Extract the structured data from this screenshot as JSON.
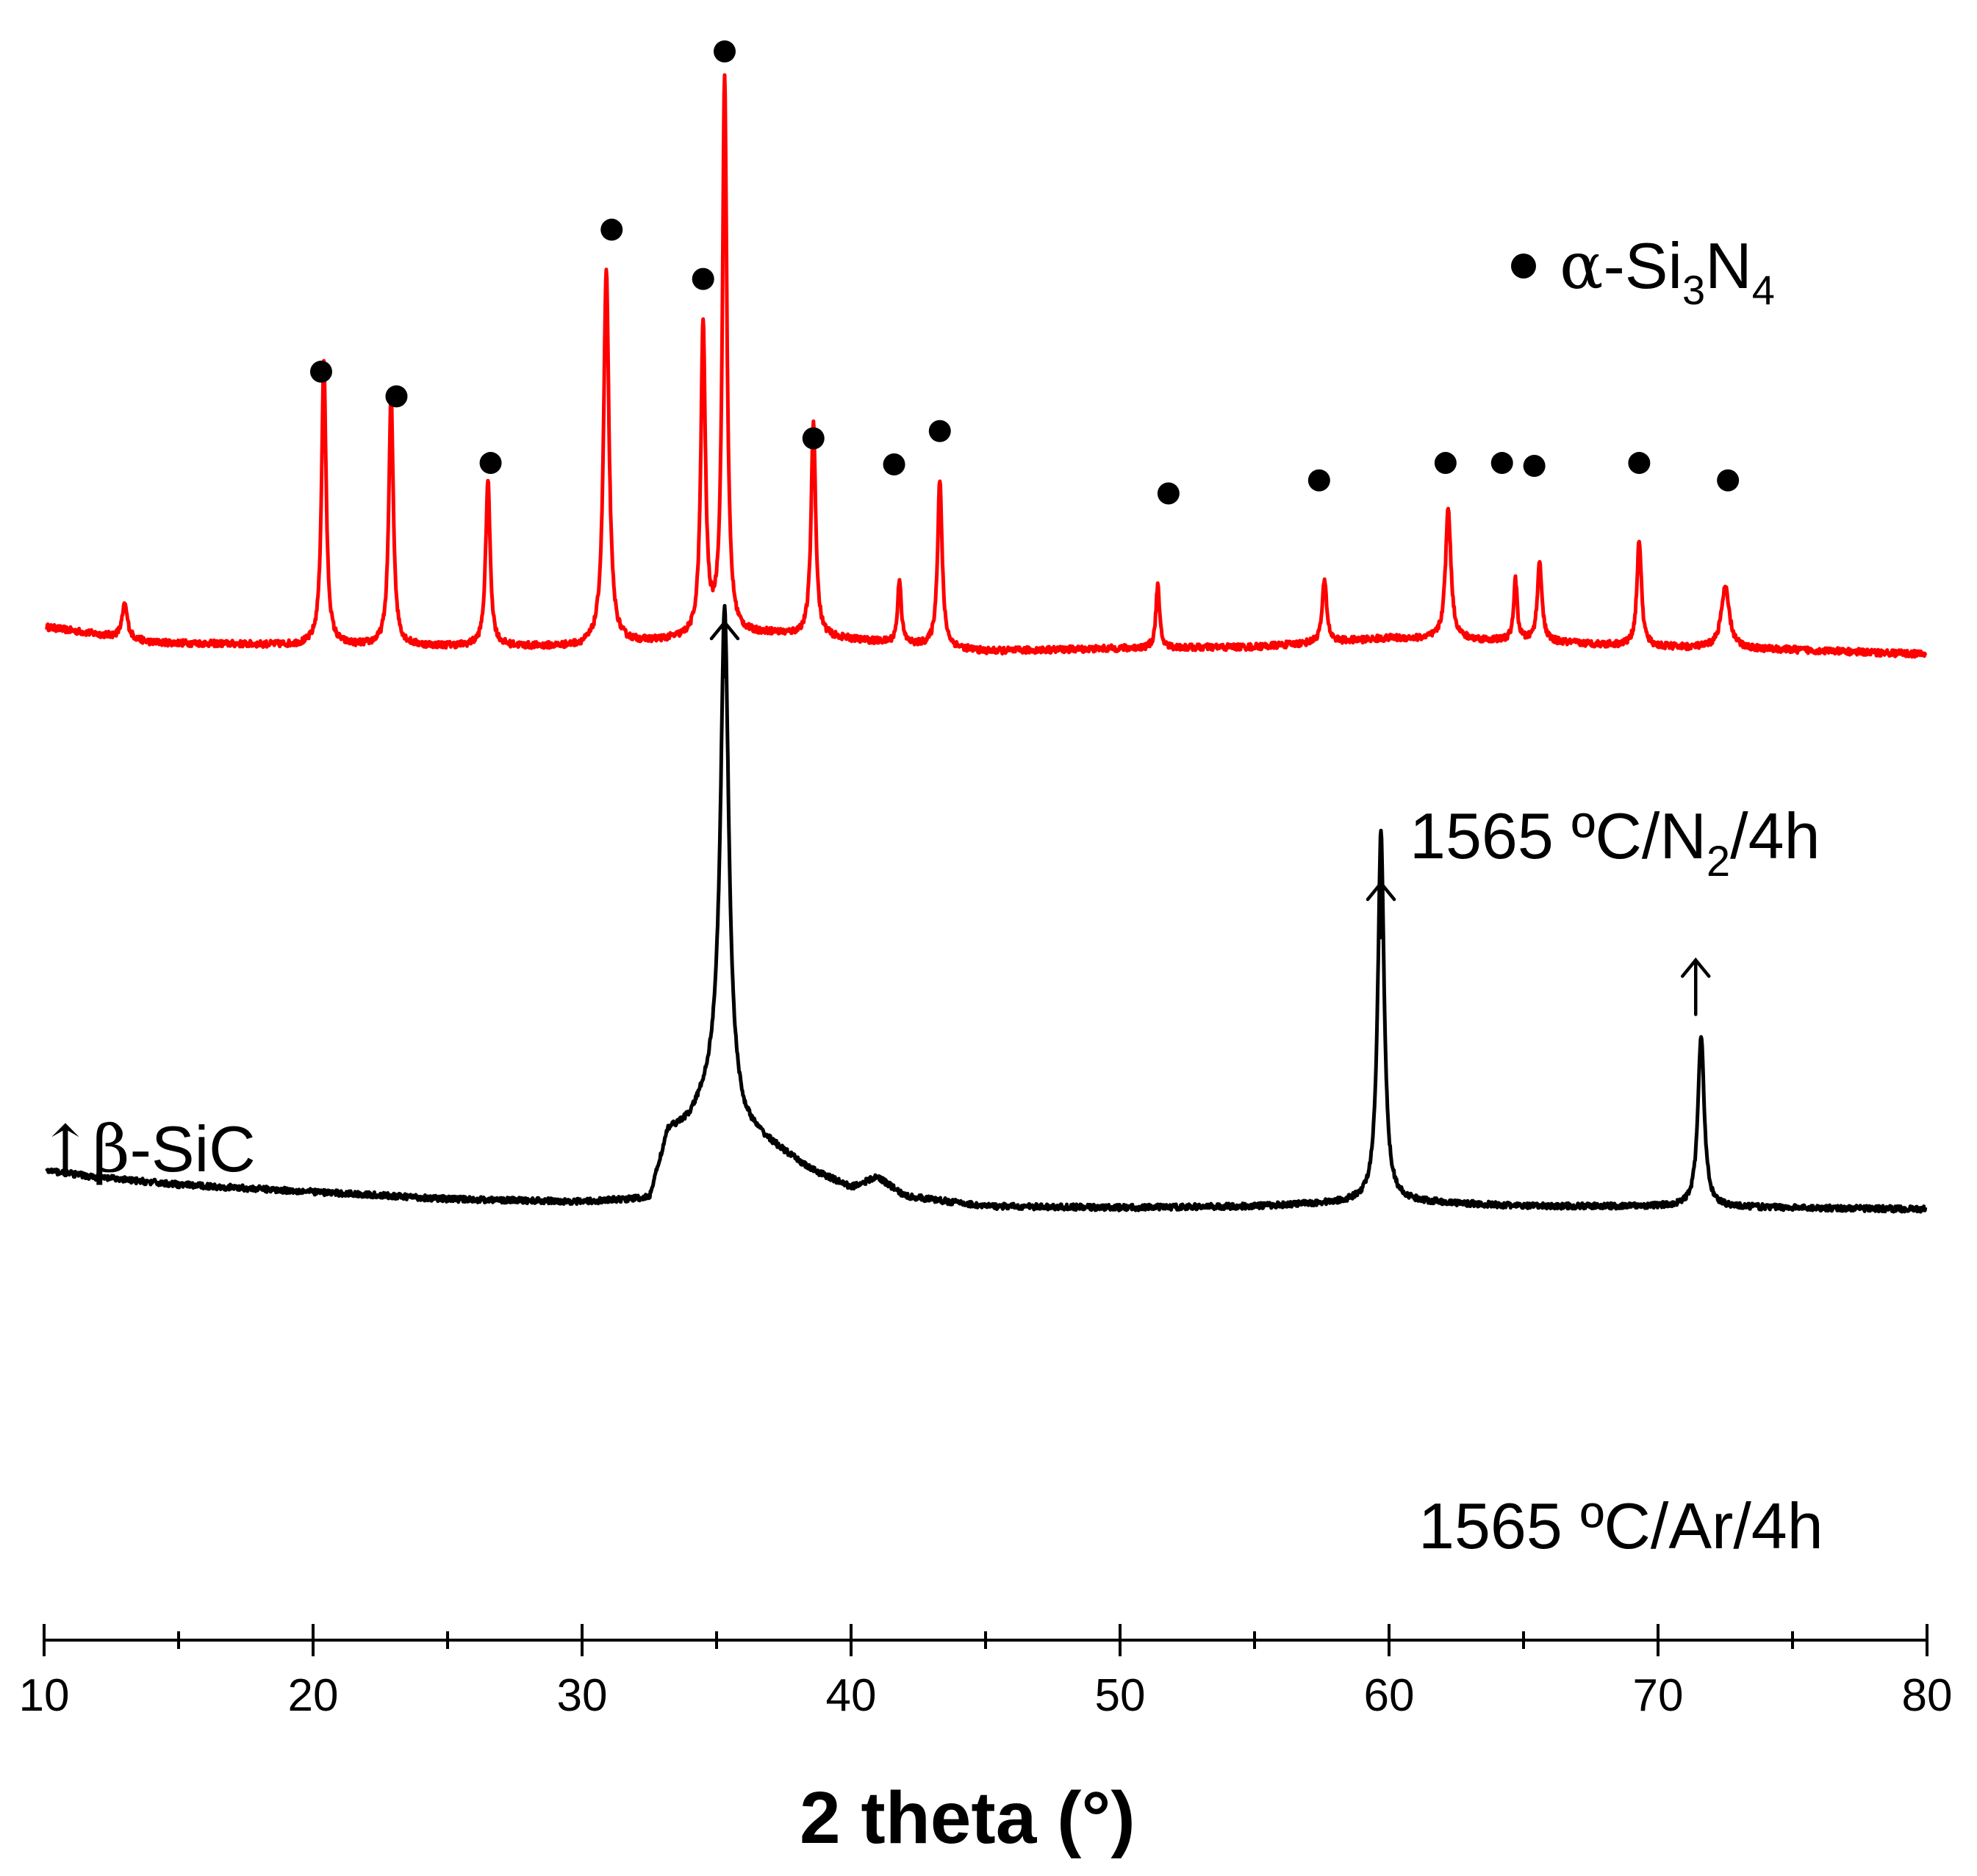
{
  "chart_data": {
    "type": "line",
    "title": "",
    "xlabel": "2 theta (°)",
    "ylabel": "",
    "xlim": [
      10,
      80
    ],
    "ylim": [
      0,
      100
    ],
    "x_ticks_major": [
      10,
      20,
      30,
      40,
      50,
      60,
      70,
      80
    ],
    "x_ticks_minor": [
      15,
      25,
      35,
      45,
      55,
      65,
      75
    ],
    "y_axis_visible": false,
    "grid": false,
    "series": [
      {
        "name": "1565 ºC/N2/4h",
        "label_main": "1565 ºC/N",
        "label_sub": "2",
        "label_tail": "/4h",
        "color": "#ff0000",
        "baseline": [
          [
            10,
            60.3
          ],
          [
            13,
            59.5
          ],
          [
            14,
            59.2
          ],
          [
            20,
            59.0
          ],
          [
            30,
            58.9
          ],
          [
            33,
            59.3
          ],
          [
            37,
            59.8
          ],
          [
            40,
            59.4
          ],
          [
            45,
            58.6
          ],
          [
            50,
            58.8
          ],
          [
            55,
            58.9
          ],
          [
            60,
            59.5
          ],
          [
            65,
            59.3
          ],
          [
            70,
            58.9
          ],
          [
            75,
            58.7
          ],
          [
            80,
            58.4
          ]
        ],
        "peaks": [
          {
            "x": 13.0,
            "y": 61.8,
            "w": 0.12
          },
          {
            "x": 20.4,
            "y": 78.6,
            "w": 0.1
          },
          {
            "x": 22.9,
            "y": 76.2,
            "w": 0.1
          },
          {
            "x": 26.5,
            "y": 70.4,
            "w": 0.1
          },
          {
            "x": 30.9,
            "y": 84.8,
            "w": 0.12
          },
          {
            "x": 34.5,
            "y": 81.0,
            "w": 0.1
          },
          {
            "x": 35.3,
            "y": 98.1,
            "w": 0.1
          },
          {
            "x": 38.6,
            "y": 74.5,
            "w": 0.1
          },
          {
            "x": 41.8,
            "y": 63.6,
            "w": 0.08
          },
          {
            "x": 43.3,
            "y": 70.5,
            "w": 0.1
          },
          {
            "x": 51.4,
            "y": 63.2,
            "w": 0.08
          },
          {
            "x": 57.6,
            "y": 63.5,
            "w": 0.1
          },
          {
            "x": 62.2,
            "y": 68.5,
            "w": 0.12
          },
          {
            "x": 64.7,
            "y": 63.5,
            "w": 0.08
          },
          {
            "x": 65.6,
            "y": 64.8,
            "w": 0.1
          },
          {
            "x": 69.3,
            "y": 66.3,
            "w": 0.1
          },
          {
            "x": 72.5,
            "y": 63.0,
            "w": 0.18
          }
        ]
      },
      {
        "name": "1565 ºC/Ar/4h",
        "label_main": "1565 ºC/Ar/4h",
        "color": "#000000",
        "baseline": [
          [
            10,
            22.8
          ],
          [
            12,
            22.3
          ],
          [
            15,
            21.8
          ],
          [
            20,
            21.3
          ],
          [
            25,
            20.8
          ],
          [
            30,
            20.6
          ],
          [
            32.5,
            20.8
          ],
          [
            33.2,
            25.5
          ],
          [
            34.0,
            26.2
          ],
          [
            35.0,
            29.0
          ],
          [
            36.0,
            25.8
          ],
          [
            37.0,
            24.6
          ],
          [
            38.5,
            22.8
          ],
          [
            40.0,
            21.6
          ],
          [
            41.0,
            22.3
          ],
          [
            42.0,
            21.0
          ],
          [
            45,
            20.3
          ],
          [
            50,
            20.2
          ],
          [
            55,
            20.3
          ],
          [
            59,
            20.6
          ],
          [
            61,
            20.6
          ],
          [
            65,
            20.3
          ],
          [
            70,
            20.3
          ],
          [
            75,
            20.2
          ],
          [
            80,
            20.1
          ]
        ],
        "peaks": [
          {
            "x": 35.3,
            "y": 61.7,
            "w": 0.18
          },
          {
            "x": 59.7,
            "y": 46.2,
            "w": 0.14
          },
          {
            "x": 71.6,
            "y": 32.1,
            "w": 0.14
          }
        ]
      }
    ],
    "markers_alpha": {
      "symbol": "●",
      "phase": "α-Si3N4",
      "x": [
        20.3,
        23.1,
        26.6,
        31.1,
        34.5,
        35.3,
        38.6,
        41.6,
        43.3,
        51.8,
        57.4,
        62.1,
        64.2,
        65.4,
        69.3,
        72.6
      ],
      "y": [
        77.9,
        76.2,
        71.6,
        87.7,
        84.3,
        100.0,
        73.3,
        71.5,
        73.8,
        69.5,
        70.4,
        71.6,
        71.6,
        71.4,
        71.6,
        70.4
      ]
    },
    "markers_beta": {
      "symbol": "↑",
      "phase": "β-SiC",
      "x": [
        35.3,
        59.7,
        71.4
      ],
      "y": [
        60.8,
        42.8,
        37.5
      ]
    },
    "annotations": {
      "legend_alpha": {
        "greek": "α",
        "text": "-Si",
        "sub1": "3",
        "mid": "N",
        "sub2": "4"
      },
      "legend_beta": {
        "arrow": "↑",
        "greek": "β",
        "text": "-SiC"
      }
    }
  }
}
